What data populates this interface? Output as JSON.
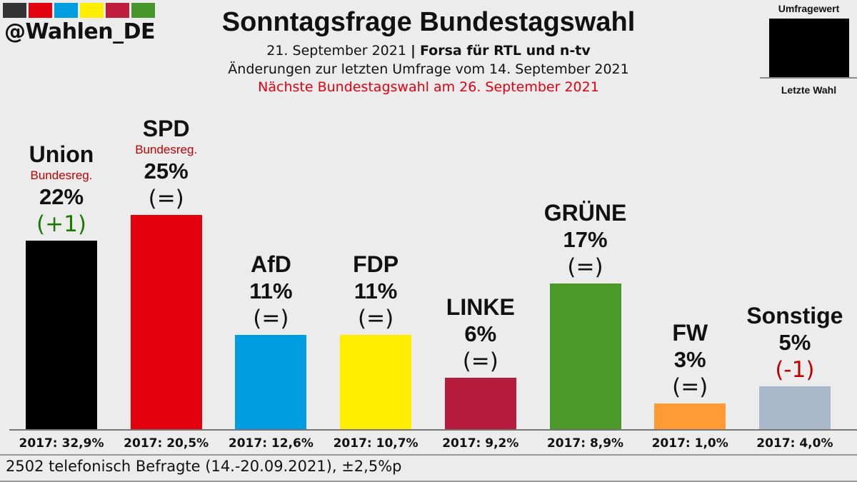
{
  "header": {
    "handle": "@Wahlen_DE",
    "title": "Sonntagsfrage Bundestagswahl",
    "date": "21. September 2021",
    "separator": "|",
    "institute": "Forsa für RTL und n-tv",
    "changes_note": "Änderungen zur letzten Umfrage vom 14. September 2021",
    "next_election": "Nächste Bundestagswahl am 26. September 2021",
    "swatch_colors": [
      "#333333",
      "#e3000f",
      "#009ee0",
      "#ffed00",
      "#be1e3c",
      "#46962b"
    ]
  },
  "legend": {
    "top": "Umfragewert",
    "bottom": "Letzte Wahl"
  },
  "footer": "2502 telefonisch Befragte (14.-20.09.2021), ±2,5%p",
  "chart_data": {
    "type": "bar",
    "title": "Sonntagsfrage Bundestagswahl",
    "ylim": [
      0,
      25
    ],
    "categories": [
      "Union",
      "SPD",
      "AfD",
      "FDP",
      "LINKE",
      "GRÜNE",
      "FW",
      "Sonstige"
    ],
    "values": [
      22,
      25,
      11,
      11,
      6,
      17,
      3,
      5
    ],
    "value_labels": [
      "22%",
      "25%",
      "11%",
      "11%",
      "6%",
      "17%",
      "3%",
      "5%"
    ],
    "changes": [
      "(+1)",
      "(=)",
      "(=)",
      "(=)",
      "(=)",
      "(=)",
      "(=)",
      "(-1)"
    ],
    "change_colors": [
      "#1a7a00",
      "#111111",
      "#111111",
      "#111111",
      "#111111",
      "#111111",
      "#111111",
      "#c00000"
    ],
    "government": [
      "Bundesreg.",
      "Bundesreg.",
      "",
      "",
      "",
      "",
      "",
      ""
    ],
    "previous_election": [
      "2017: 32,9%",
      "2017: 20,5%",
      "2017: 12,6%",
      "2017: 10,7%",
      "2017: 9,2%",
      "2017: 8,9%",
      "2017: 1,0%",
      "2017: 4,0%"
    ],
    "colors": [
      "#000000",
      "#e3000f",
      "#009ee0",
      "#ffed00",
      "#b71c3c",
      "#4c9a2a",
      "#ff9a35",
      "#aab8cc"
    ]
  }
}
